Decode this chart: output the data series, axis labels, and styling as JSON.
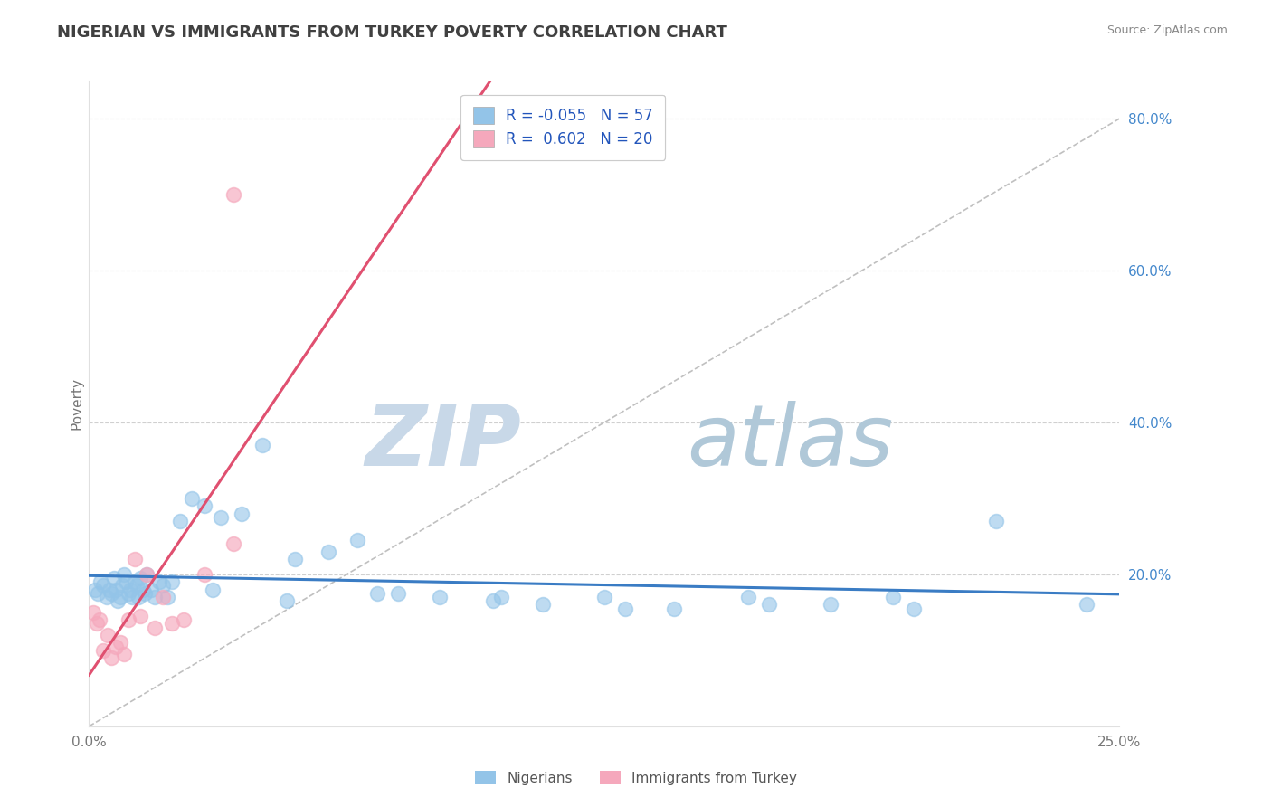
{
  "title": "NIGERIAN VS IMMIGRANTS FROM TURKEY POVERTY CORRELATION CHART",
  "source": "Source: ZipAtlas.com",
  "ylabel_label": "Poverty",
  "xlim": [
    0.0,
    25.0
  ],
  "ylim": [
    0.0,
    85.0
  ],
  "nigerian_R": -0.055,
  "nigerian_N": 57,
  "turkey_R": 0.602,
  "turkey_N": 20,
  "nigerian_color": "#93c4e8",
  "turkey_color": "#f5a8bc",
  "nigerian_line_color": "#3a7cc4",
  "turkey_line_color": "#e05070",
  "ref_line_color": "#c0c0c0",
  "watermark_zip": "ZIP",
  "watermark_atlas": "atlas",
  "watermark_color_zip": "#c8d8e8",
  "watermark_color_atlas": "#b0c8d8",
  "legend_fontsize": 12,
  "title_fontsize": 13,
  "tick_fontsize": 11,
  "nigerian_x": [
    0.15,
    0.22,
    0.28,
    0.35,
    0.42,
    0.5,
    0.55,
    0.6,
    0.65,
    0.7,
    0.75,
    0.8,
    0.85,
    0.9,
    0.95,
    1.0,
    1.05,
    1.1,
    1.15,
    1.2,
    1.25,
    1.3,
    1.35,
    1.4,
    1.5,
    1.6,
    1.7,
    1.8,
    1.9,
    2.0,
    2.2,
    2.5,
    2.8,
    3.2,
    3.7,
    4.2,
    5.0,
    5.8,
    6.5,
    7.5,
    8.5,
    9.8,
    11.0,
    12.5,
    14.2,
    16.0,
    18.0,
    20.0,
    22.0,
    24.2,
    3.0,
    4.8,
    7.0,
    10.0,
    13.0,
    16.5,
    19.5
  ],
  "nigerian_y": [
    18.0,
    17.5,
    19.0,
    18.5,
    17.0,
    18.0,
    17.5,
    19.5,
    18.0,
    16.5,
    17.0,
    18.5,
    20.0,
    19.0,
    17.5,
    18.0,
    17.0,
    19.0,
    18.5,
    17.0,
    19.5,
    18.0,
    17.5,
    20.0,
    18.0,
    17.0,
    19.0,
    18.5,
    17.0,
    19.0,
    27.0,
    30.0,
    29.0,
    27.5,
    28.0,
    37.0,
    22.0,
    23.0,
    24.5,
    17.5,
    17.0,
    16.5,
    16.0,
    17.0,
    15.5,
    17.0,
    16.0,
    15.5,
    27.0,
    16.0,
    18.0,
    16.5,
    17.5,
    17.0,
    15.5,
    16.0,
    17.0
  ],
  "turkey_x": [
    0.1,
    0.18,
    0.25,
    0.35,
    0.45,
    0.55,
    0.65,
    0.75,
    0.85,
    0.95,
    1.1,
    1.25,
    1.4,
    1.6,
    1.8,
    2.0,
    2.3,
    2.8,
    3.5,
    3.5
  ],
  "turkey_y": [
    15.0,
    13.5,
    14.0,
    10.0,
    12.0,
    9.0,
    10.5,
    11.0,
    9.5,
    14.0,
    22.0,
    14.5,
    20.0,
    13.0,
    17.0,
    13.5,
    14.0,
    20.0,
    70.0,
    24.0
  ]
}
